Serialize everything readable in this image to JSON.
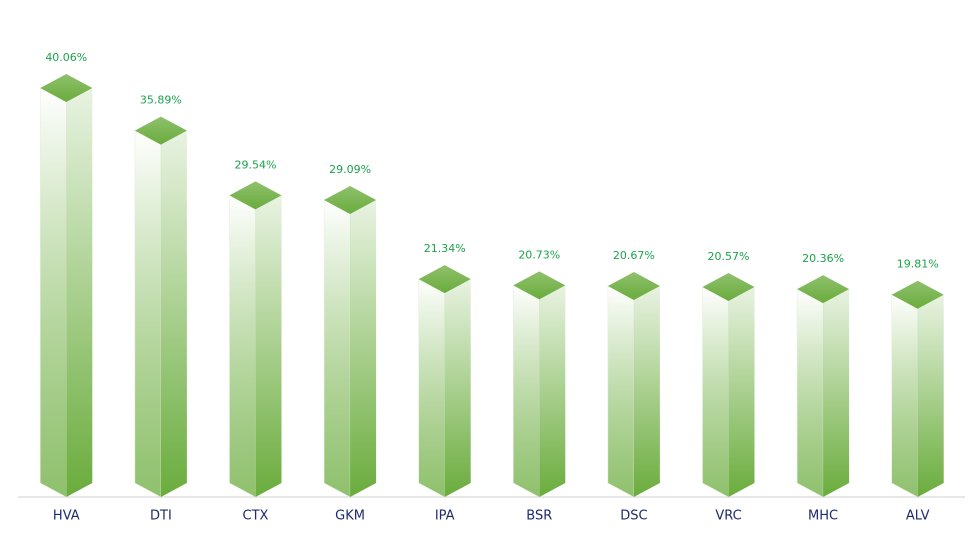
{
  "chart_data": {
    "type": "bar3d",
    "categories": [
      "HVA",
      "DTI",
      "CTX",
      "GKM",
      "IPA",
      "BSR",
      "DSC",
      "VRC",
      "MHC",
      "ALV"
    ],
    "values": [
      40.06,
      35.89,
      29.54,
      29.09,
      21.34,
      20.73,
      20.67,
      20.57,
      20.36,
      19.81
    ],
    "value_labels": [
      "40.06%",
      "35.89%",
      "29.54%",
      "29.09%",
      "21.34%",
      "20.73%",
      "20.67%",
      "20.57%",
      "20.36%",
      "19.81%"
    ],
    "color": "#6aac3c"
  }
}
